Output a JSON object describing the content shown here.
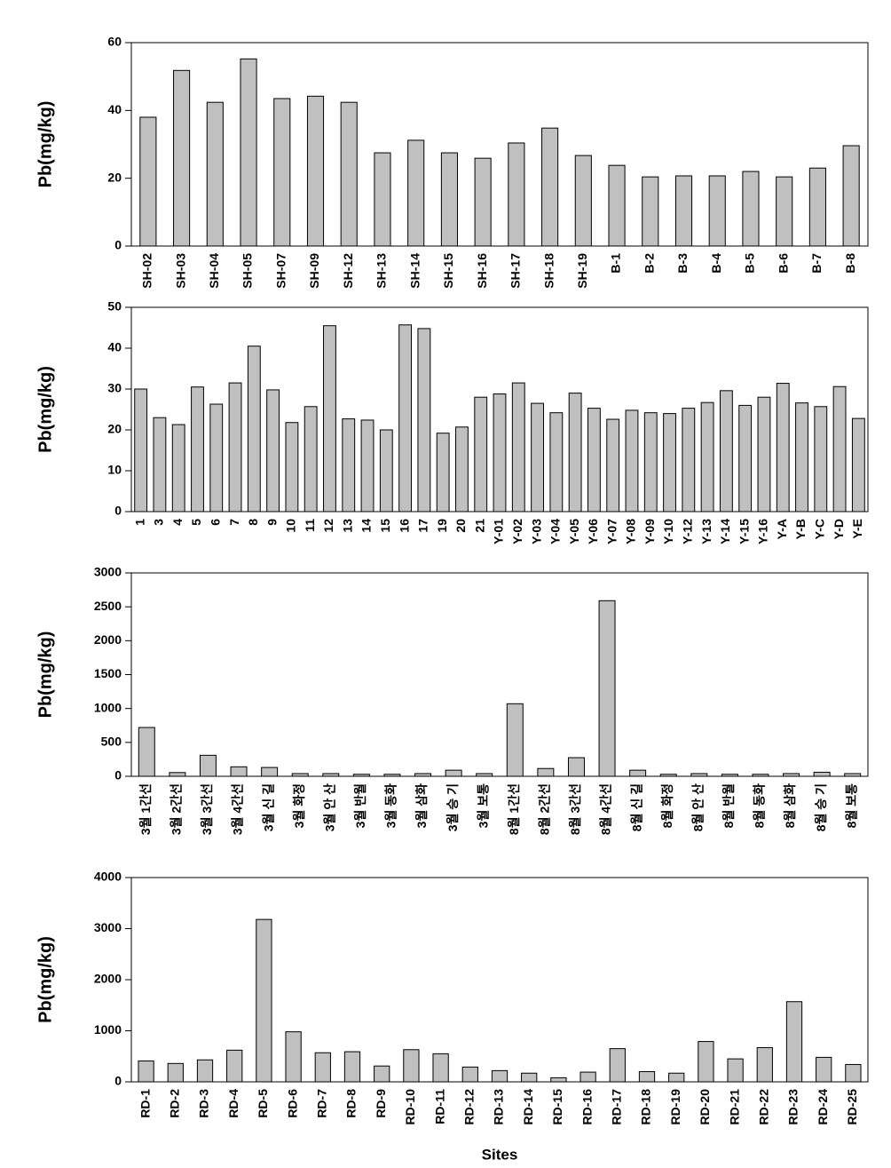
{
  "chart_data": [
    {
      "type": "bar",
      "y_label": "Pb(mg/kg)",
      "color": "#c0c0c0",
      "categories": [
        "SH-02",
        "SH-03",
        "SH-04",
        "SH-05",
        "SH-07",
        "SH-09",
        "SH-12",
        "SH-13",
        "SH-14",
        "SH-15",
        "SH-16",
        "SH-17",
        "SH-18",
        "SH-19",
        "B-1",
        "B-2",
        "B-3",
        "B-4",
        "B-5",
        "B-6",
        "B-7",
        "B-8"
      ],
      "values": [
        38,
        51.8,
        42.4,
        55.2,
        43.5,
        44.2,
        42.4,
        27.5,
        31.2,
        27.5,
        25.9,
        30.4,
        34.8,
        26.7,
        23.8,
        20.4,
        20.7,
        20.7,
        22,
        20.4,
        23,
        29.6
      ],
      "ylim": [
        0,
        60
      ],
      "yticks": [
        0,
        20,
        40,
        60
      ]
    },
    {
      "type": "bar",
      "y_label": "Pb(mg/kg)",
      "color": "#c0c0c0",
      "categories": [
        "1",
        "3",
        "4",
        "5",
        "6",
        "7",
        "8",
        "9",
        "10",
        "11",
        "12",
        "13",
        "14",
        "15",
        "16",
        "17",
        "19",
        "20",
        "21",
        "Y-01",
        "Y-02",
        "Y-03",
        "Y-04",
        "Y-05",
        "Y-06",
        "Y-07",
        "Y-08",
        "Y-09",
        "Y-10",
        "Y-12",
        "Y-13",
        "Y-14",
        "Y-15",
        "Y-16",
        "Y-A",
        "Y-B",
        "Y-C",
        "Y-D",
        "Y-E"
      ],
      "values": [
        30,
        23,
        21.3,
        30.5,
        26.3,
        31.5,
        40.5,
        29.8,
        21.8,
        25.7,
        45.5,
        22.7,
        22.4,
        20,
        45.7,
        44.8,
        19.2,
        20.7,
        28,
        28.8,
        31.5,
        26.5,
        24.2,
        29,
        25.3,
        22.6,
        24.8,
        24.2,
        24,
        25.3,
        26.7,
        29.6,
        26,
        28,
        31.4,
        26.6,
        25.7,
        30.6,
        22.8
      ],
      "ylim": [
        0,
        50
      ],
      "yticks": [
        0,
        10,
        20,
        30,
        40,
        50
      ]
    },
    {
      "type": "bar",
      "y_label": "Pb(mg/kg)",
      "color": "#c0c0c0",
      "categories": [
        "3월 1간선",
        "3월 2간선",
        "3월 3간선",
        "3월 4간선",
        "3월 신 길",
        "3월 화정",
        "3월 안 산",
        "3월 반월",
        "3월 동화",
        "3월 삼화",
        "3월 승 기",
        "3월 보통",
        "8월 1간선",
        "8월 2간선",
        "8월 3간선",
        "8월 4간선",
        "8월 신 길",
        "8월 화정",
        "8월 안 산",
        "8월 반월",
        "8월 동화",
        "8월 삼화",
        "8월 승 기",
        "8월 보통"
      ],
      "values": [
        720,
        55,
        310,
        140,
        130,
        40,
        40,
        30,
        30,
        40,
        90,
        40,
        1070,
        115,
        275,
        2590,
        90,
        30,
        40,
        30,
        30,
        40,
        60,
        40
      ],
      "ylim": [
        0,
        3000
      ],
      "yticks": [
        0,
        500,
        1000,
        1500,
        2000,
        2500,
        3000
      ]
    },
    {
      "type": "bar",
      "y_label": "Pb(mg/kg)",
      "x_label": "Sites",
      "color": "#c0c0c0",
      "categories": [
        "RD-1",
        "RD-2",
        "RD-3",
        "RD-4",
        "RD-5",
        "RD-6",
        "RD-7",
        "RD-8",
        "RD-9",
        "RD-10",
        "RD-11",
        "RD-12",
        "RD-13",
        "RD-14",
        "RD-15",
        "RD-16",
        "RD-17",
        "RD-18",
        "RD-19",
        "RD-20",
        "RD-21",
        "RD-22",
        "RD-23",
        "RD-24",
        "RD-25"
      ],
      "values": [
        410,
        360,
        430,
        620,
        3180,
        980,
        570,
        590,
        310,
        630,
        550,
        290,
        220,
        170,
        80,
        190,
        650,
        200,
        170,
        790,
        450,
        670,
        1570,
        480,
        340
      ],
      "ylim": [
        0,
        4000
      ],
      "yticks": [
        0,
        1000,
        2000,
        3000,
        4000
      ]
    }
  ]
}
